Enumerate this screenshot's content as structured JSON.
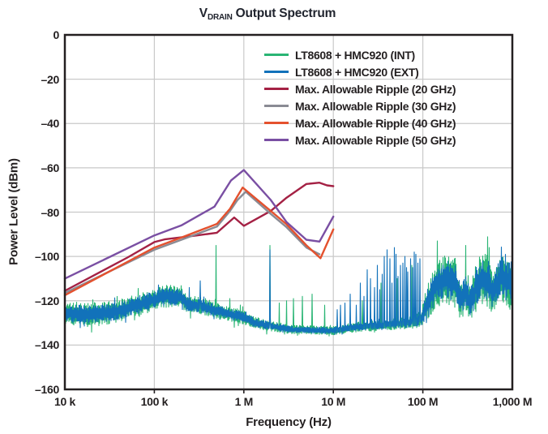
{
  "title": {
    "prefix": "V",
    "subscript": "DRAIN",
    "rest": "Output Spectrum"
  },
  "chart_data": {
    "type": "line",
    "title": "VDRAIN Output Spectrum",
    "xlabel": "Frequency (Hz)",
    "ylabel": "Power Level (dBm)",
    "x_scale": "log",
    "x_range": [
      10000,
      1000000000
    ],
    "y_range": [
      -160,
      0
    ],
    "grid": true,
    "legend_position": "top-right",
    "frame_color": "#231f20",
    "grid_color": "#c9c9c9",
    "x_ticks": [
      {
        "value": 10000,
        "label": "10 k"
      },
      {
        "value": 100000,
        "label": "100 k"
      },
      {
        "value": 1000000,
        "label": "1 M"
      },
      {
        "value": 10000000,
        "label": "10 M"
      },
      {
        "value": 100000000,
        "label": "100 M"
      },
      {
        "value": 1000000000,
        "label": "1,000 M"
      }
    ],
    "y_ticks": [
      {
        "value": 0,
        "label": "0"
      },
      {
        "value": -20,
        "label": "–20"
      },
      {
        "value": -40,
        "label": "–40"
      },
      {
        "value": -60,
        "label": "–60"
      },
      {
        "value": -80,
        "label": "–80"
      },
      {
        "value": -100,
        "label": "–100"
      },
      {
        "value": -120,
        "label": "–120"
      },
      {
        "value": -140,
        "label": "–140"
      },
      {
        "value": -160,
        "label": "–160"
      }
    ],
    "noise_envelope": [
      [
        10000,
        -125.5,
        4
      ],
      [
        20000,
        -126.5,
        4.2
      ],
      [
        40000,
        -124.5,
        4
      ],
      [
        90000,
        -120,
        4
      ],
      [
        140000,
        -118,
        4
      ],
      [
        200000,
        -118.3,
        4
      ],
      [
        230000,
        -121.5,
        3.2
      ],
      [
        350000,
        -122.5,
        3
      ],
      [
        600000,
        -125.5,
        2.6
      ],
      [
        1000000,
        -127.5,
        2.4
      ],
      [
        1350000,
        -130,
        2
      ],
      [
        2000000,
        -131.5,
        1.8
      ],
      [
        3500000,
        -133,
        1.5
      ],
      [
        10000000,
        -133.5,
        1.5
      ],
      [
        17000000,
        -132,
        1.7
      ],
      [
        35000000,
        -131,
        1.8
      ],
      [
        70000000,
        -130,
        2
      ],
      [
        95000000,
        -128.5,
        3
      ],
      [
        110000000,
        -122,
        6
      ],
      [
        140000000,
        -113,
        8
      ],
      [
        180000000,
        -110,
        9
      ],
      [
        230000000,
        -112,
        9
      ],
      [
        260000000,
        -120,
        6
      ],
      [
        300000000,
        -116,
        8
      ],
      [
        340000000,
        -121,
        6
      ],
      [
        400000000,
        -113,
        9
      ],
      [
        460000000,
        -110,
        9
      ],
      [
        540000000,
        -111,
        9
      ],
      [
        600000000,
        -117,
        7
      ],
      [
        660000000,
        -113,
        8
      ],
      [
        750000000,
        -109,
        9
      ],
      [
        850000000,
        -111,
        9
      ],
      [
        1000000000,
        -112,
        10
      ]
    ],
    "series": [
      {
        "id": "int",
        "kind": "spectrum",
        "name": "LT8608 + HMC920 (INT)",
        "color": "#2AB574",
        "spurs": [
          [
            490000,
            -95
          ],
          [
            700000,
            -119
          ],
          [
            1950000,
            -95
          ],
          [
            2500000,
            -121
          ],
          [
            3000000,
            -120
          ],
          [
            3600000,
            -119
          ],
          [
            4500000,
            -118
          ],
          [
            5800000,
            -117
          ],
          [
            8000000,
            -122
          ],
          [
            21000000,
            -120
          ],
          [
            34000000,
            -112
          ],
          [
            52000000,
            -110
          ],
          [
            75000000,
            -104
          ],
          [
            145000000,
            -93
          ],
          [
            300000000,
            -95
          ],
          [
            550000000,
            -96
          ]
        ]
      },
      {
        "id": "ext",
        "kind": "spectrum",
        "name": "LT8608 + HMC920 (EXT)",
        "color": "#1272BA",
        "spurs": [
          [
            245000,
            -114
          ],
          [
            325000,
            -111
          ],
          [
            1950000,
            -97
          ],
          [
            11000000,
            -124
          ],
          [
            12000000,
            -122
          ],
          [
            13500000,
            -121
          ],
          [
            15500000,
            -117
          ],
          [
            18000000,
            -122
          ],
          [
            20000000,
            -112
          ],
          [
            22000000,
            -118
          ],
          [
            24000000,
            -106
          ],
          [
            26000000,
            -110
          ],
          [
            29000000,
            -114
          ],
          [
            31000000,
            -104
          ],
          [
            33000000,
            -115
          ],
          [
            35000000,
            -108
          ],
          [
            37000000,
            -100
          ],
          [
            40000000,
            -97
          ],
          [
            43000000,
            -101
          ],
          [
            45000000,
            -112
          ],
          [
            48000000,
            -96
          ],
          [
            50000000,
            -99
          ],
          [
            53000000,
            -109
          ],
          [
            56000000,
            -104
          ],
          [
            60000000,
            -103
          ],
          [
            63000000,
            -100
          ],
          [
            66000000,
            -105
          ],
          [
            68000000,
            -107
          ],
          [
            73000000,
            -101
          ],
          [
            77000000,
            -105
          ],
          [
            80000000,
            -98
          ],
          [
            84000000,
            -99
          ],
          [
            88000000,
            -103
          ],
          [
            93000000,
            -101
          ]
        ]
      },
      {
        "id": "ripple-20ghz",
        "kind": "line",
        "name": "Max. Allowable Ripple (20 GHz)",
        "color": "#A42144",
        "points": [
          [
            10000,
            -115.5
          ],
          [
            50000,
            -100.5
          ],
          [
            100000,
            -93.5
          ],
          [
            130000,
            -92.3
          ],
          [
            300000,
            -90.5
          ],
          [
            500000,
            -89.3
          ],
          [
            780000,
            -82.4
          ],
          [
            1000000,
            -86.2
          ],
          [
            2000000,
            -79.5
          ],
          [
            3000000,
            -73.5
          ],
          [
            5000000,
            -67.3
          ],
          [
            7000000,
            -66.7
          ],
          [
            8500000,
            -67.9
          ],
          [
            10000000,
            -68.3
          ]
        ]
      },
      {
        "id": "ripple-30ghz",
        "kind": "line",
        "name": "Max. Allowable Ripple (30 GHz)",
        "color": "#8A8B94",
        "points": [
          [
            10000,
            -116.5
          ],
          [
            100000,
            -97
          ],
          [
            200000,
            -92.5
          ],
          [
            500000,
            -86.5
          ],
          [
            700000,
            -79.5
          ],
          [
            850000,
            -74.5
          ],
          [
            1050000,
            -70.8
          ],
          [
            2000000,
            -80.8
          ],
          [
            3000000,
            -86.8
          ],
          [
            5000000,
            -96
          ],
          [
            7000000,
            -99
          ]
        ]
      },
      {
        "id": "ripple-40ghz",
        "kind": "line",
        "name": "Max. Allowable Ripple (40 GHz)",
        "color": "#E4512E",
        "points": [
          [
            10000,
            -117.5
          ],
          [
            100000,
            -96
          ],
          [
            200000,
            -91.5
          ],
          [
            500000,
            -85.3
          ],
          [
            700000,
            -78.5
          ],
          [
            970000,
            -68.9
          ],
          [
            2000000,
            -79.5
          ],
          [
            3000000,
            -85.5
          ],
          [
            5000000,
            -95
          ],
          [
            7200000,
            -100.8
          ],
          [
            10000000,
            -87.8
          ]
        ]
      },
      {
        "id": "ripple-50ghz",
        "kind": "line",
        "name": "Max. Allowable Ripple (50 GHz)",
        "color": "#7A4FA3",
        "points": [
          [
            10000,
            -110
          ],
          [
            100000,
            -90.5
          ],
          [
            200000,
            -86
          ],
          [
            470000,
            -77.5
          ],
          [
            720000,
            -65.7
          ],
          [
            1000000,
            -61
          ],
          [
            2000000,
            -74.5
          ],
          [
            3000000,
            -84.5
          ],
          [
            5000000,
            -92.5
          ],
          [
            7000000,
            -93.3
          ],
          [
            10000000,
            -82
          ]
        ]
      }
    ]
  }
}
